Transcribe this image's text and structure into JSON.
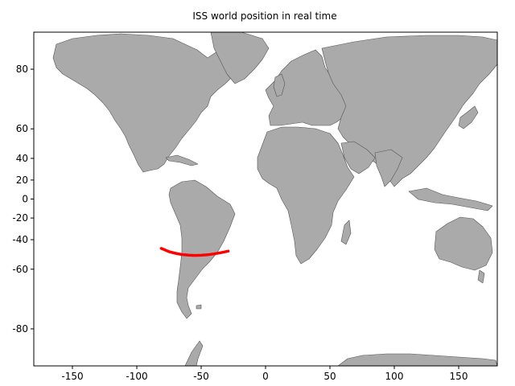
{
  "title": "ISS world position in real time",
  "colors": {
    "land": "#aaaaaa",
    "coastline": "#555555",
    "ocean": "#ffffff",
    "track": "#ff0000",
    "frame": "#000000"
  },
  "chart_data": {
    "type": "line",
    "title": "ISS world position in real time",
    "xlabel": "",
    "ylabel": "",
    "xlim": [
      -180,
      180
    ],
    "ylim": [
      -85,
      85
    ],
    "y_projection": "mercator",
    "grid": false,
    "xticks": [
      -150,
      -100,
      -50,
      0,
      50,
      100,
      150
    ],
    "xtick_labels": [
      "-150",
      "-100",
      "-50",
      "0",
      "50",
      "100",
      "150"
    ],
    "yticks": [
      80,
      60,
      40,
      20,
      0,
      -20,
      -40,
      -60,
      -80
    ],
    "ytick_labels": [
      "80",
      "60",
      "40",
      "20",
      "0",
      "-20",
      "-40",
      "-60",
      "-80"
    ],
    "series": [
      {
        "color": "#ff0000",
        "x": [
          -81,
          -75,
          -70,
          -65,
          -60,
          -55,
          -50,
          -45,
          -40,
          -35,
          -29
        ],
        "y": [
          -46.8,
          -49.1,
          -50.3,
          -51.1,
          -51.5,
          -51.7,
          -51.6,
          -51.3,
          -50.7,
          -49.9,
          -48.8
        ]
      }
    ]
  }
}
